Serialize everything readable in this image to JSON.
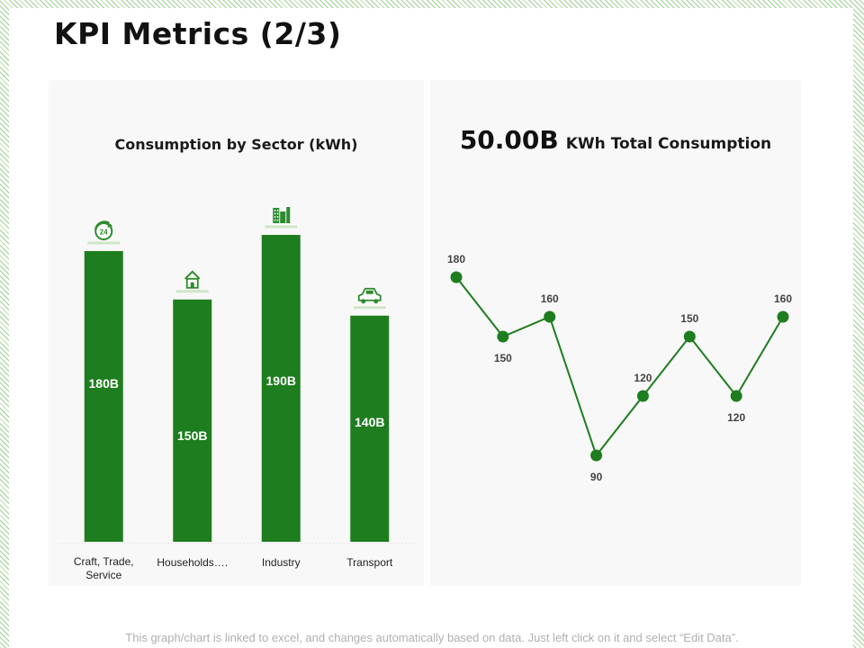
{
  "slide": {
    "title": "KPI Metrics (2/3)",
    "footer": "This graph/chart is linked to excel, and changes automatically based on data. Just left click on it and select “Edit Data”."
  },
  "colors": {
    "accent": "#1e7d1e",
    "icon": "#2e8b2e",
    "text": "#222222"
  },
  "chart_data": [
    {
      "type": "bar",
      "title": "Consumption by Sector (kWh)",
      "categories": [
        "Craft, Trade, Service",
        "Households….",
        "Industry",
        "Transport"
      ],
      "category_lines": [
        [
          "Craft, Trade,",
          "Service"
        ],
        [
          "Households…."
        ],
        [
          "Industry"
        ],
        [
          "Transport"
        ]
      ],
      "values": [
        180,
        150,
        190,
        140
      ],
      "value_labels": [
        "180B",
        "150B",
        "190B",
        "140B"
      ],
      "icons": [
        "clock-24-icon",
        "house-icon",
        "factory-icon",
        "car-icon"
      ],
      "ylim": [
        0,
        190
      ],
      "grid": false
    },
    {
      "type": "line",
      "headline_value": "50.00B",
      "headline_label": "KWh Total Consumption",
      "values": [
        180,
        150,
        160,
        90,
        120,
        150,
        120,
        160
      ],
      "value_labels": [
        "180",
        "150",
        "160",
        "90",
        "120",
        "150",
        "120",
        "160"
      ],
      "label_positions": [
        "above",
        "below",
        "above",
        "below",
        "above",
        "above",
        "below",
        "above"
      ],
      "ylim": [
        90,
        180
      ],
      "grid": false
    }
  ]
}
